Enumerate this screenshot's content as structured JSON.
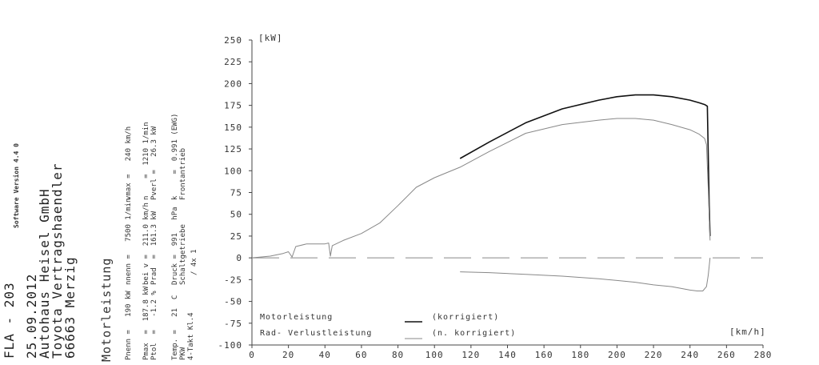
{
  "header": {
    "title": "FLA - 203",
    "date": "25.09.2012",
    "dealer1": "Autohaus Heisel GmbH",
    "dealer2": "Toyota Vertragshaendler",
    "dealer3": "66663 Merzig",
    "software": "Software Version 4.4 0",
    "section": "Motorleistung"
  },
  "params": {
    "col1": [
      "Pnenn =   190 kW",
      "Pmax  =  187.8 kW",
      "Ptol  =   -1.2 %",
      "Temp. =   21  C",
      "PKW",
      "4-Takt Kl.4"
    ],
    "col2": [
      "nnenn =   7500 1/min",
      "bei v =  211.0 km/h",
      "Prad  =  161.3 kW",
      "Druck =  991   hPa",
      "Schaltgetriebe",
      "/ 4x 1"
    ],
    "col3": [
      "vmax =   240 km/h",
      "n    =  1210 1/min",
      "Pverl =   26.3 kW",
      "k     =  0.991 (EWG)",
      "Frontantrieb"
    ]
  },
  "chart_data": {
    "type": "line",
    "ylabel": "[kW]",
    "xlabel": "[km/h]",
    "xlim": [
      0,
      280
    ],
    "ylim": [
      -100,
      250
    ],
    "x_ticks": [
      0,
      20,
      40,
      60,
      80,
      100,
      120,
      140,
      160,
      180,
      200,
      220,
      240,
      260,
      280
    ],
    "y_ticks": [
      -100,
      -75,
      -50,
      -25,
      0,
      25,
      50,
      75,
      100,
      125,
      150,
      175,
      200,
      225,
      250
    ],
    "legend": [
      {
        "label": "Motorleistung",
        "note": "(korrigiert)"
      },
      {
        "label": "Rad- Verlustleistung",
        "note": "(n. korrigiert)"
      }
    ],
    "series": [
      {
        "name": "Motorleistung",
        "color": "#111111",
        "x": [
          114,
          130,
          150,
          170,
          190,
          200,
          210,
          220,
          230,
          240,
          245,
          248,
          249.5,
          250,
          250.5,
          251
        ],
        "y": [
          114,
          133,
          155,
          171,
          181,
          185,
          187,
          187,
          185,
          181,
          178,
          176,
          174,
          120,
          60,
          25
        ]
      },
      {
        "name": "Radleistung",
        "color": "#888888",
        "x": [
          0,
          10,
          17,
          20,
          22,
          23,
          24,
          30,
          40,
          42,
          43,
          44,
          50,
          60,
          70,
          80,
          90,
          100,
          114,
          130,
          150,
          170,
          190,
          200,
          210,
          220,
          230,
          240,
          245,
          248,
          249,
          250,
          251
        ],
        "y": [
          0,
          2,
          5,
          7,
          1,
          7,
          13,
          16,
          16,
          17,
          2,
          14,
          20,
          28,
          40,
          60,
          81,
          92,
          104,
          122,
          143,
          153,
          158,
          160,
          160,
          158,
          153,
          147,
          142,
          137,
          130,
          80,
          20
        ]
      },
      {
        "name": "Verlustleistung",
        "color": "#888888",
        "x": [
          114,
          130,
          150,
          170,
          190,
          200,
          210,
          220,
          230,
          240,
          244,
          247,
          249,
          250,
          251
        ],
        "y": [
          -16,
          -17,
          -19,
          -21,
          -24,
          -26,
          -28,
          -31,
          -33,
          -37,
          -38,
          -38,
          -33,
          -20,
          0
        ]
      }
    ],
    "reference_line": 0
  }
}
